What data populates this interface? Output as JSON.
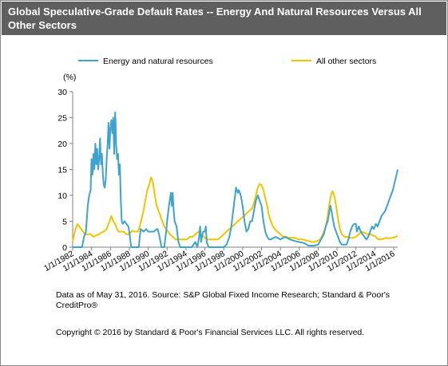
{
  "header": {
    "title": "Global Speculative-Grade Default Rates -- Energy And Natural Resources Versus All Other Sectors"
  },
  "footer": {
    "source": "Data as of May 31, 2016. Source: S&P Global Fixed Income Research; Standard &  Poor's CreditPro®",
    "copyright": "Copyright © 2016 by Standard & Poor's Financial Services LLC. All rights reserved."
  },
  "colors": {
    "energy": "#3fa3cf",
    "other": "#f2c400",
    "axis": "#808080"
  },
  "chart_data": {
    "type": "line",
    "title": "",
    "ylabel": "(%)",
    "xlabel": "",
    "xlim": [
      1982.0,
      2016.42
    ],
    "ylim": [
      0,
      30
    ],
    "yticks": [
      0,
      5,
      10,
      15,
      20,
      25,
      30
    ],
    "xticks": [
      "1/1/1982",
      "1/1/1984",
      "1/1/1986",
      "1/1/1988",
      "1/1/1990",
      "1/1/1992",
      "1/1/1994",
      "1/1/1996",
      "1/1/1998",
      "1/1/2000",
      "1/1/2002",
      "1/1/2004",
      "1/1/2006",
      "1/1/2008",
      "1/1/2010",
      "1/1/2012",
      "1/1/2014",
      "1/1/2016"
    ],
    "grid": false,
    "legend": "top",
    "series": [
      {
        "name": "Energy and natural resources",
        "color": "#3fa3cf",
        "points": [
          [
            1982.0,
            0
          ],
          [
            1982.3,
            0
          ],
          [
            1982.7,
            0
          ],
          [
            1983.0,
            0
          ],
          [
            1983.2,
            2
          ],
          [
            1983.4,
            3
          ],
          [
            1983.6,
            8
          ],
          [
            1983.75,
            10
          ],
          [
            1983.9,
            11
          ],
          [
            1984.0,
            17
          ],
          [
            1984.1,
            14
          ],
          [
            1984.2,
            18
          ],
          [
            1984.3,
            15
          ],
          [
            1984.4,
            20
          ],
          [
            1984.5,
            16
          ],
          [
            1984.6,
            19
          ],
          [
            1984.7,
            15
          ],
          [
            1984.8,
            17
          ],
          [
            1984.9,
            21
          ],
          [
            1985.0,
            16
          ],
          [
            1985.1,
            18
          ],
          [
            1985.2,
            14
          ],
          [
            1985.3,
            12
          ],
          [
            1985.4,
            11.5
          ],
          [
            1985.5,
            13
          ],
          [
            1985.6,
            17
          ],
          [
            1985.7,
            20
          ],
          [
            1985.8,
            24
          ],
          [
            1985.9,
            19
          ],
          [
            1986.0,
            23
          ],
          [
            1986.1,
            24.5
          ],
          [
            1986.2,
            22
          ],
          [
            1986.3,
            25
          ],
          [
            1986.4,
            18
          ],
          [
            1986.5,
            26
          ],
          [
            1986.55,
            24
          ],
          [
            1986.6,
            20
          ],
          [
            1986.7,
            17
          ],
          [
            1986.8,
            18
          ],
          [
            1986.9,
            14
          ],
          [
            1987.0,
            16
          ],
          [
            1987.1,
            9
          ],
          [
            1987.2,
            5
          ],
          [
            1987.3,
            4.5
          ],
          [
            1987.5,
            5
          ],
          [
            1987.7,
            4.5
          ],
          [
            1987.9,
            4
          ],
          [
            1988.0,
            3
          ],
          [
            1988.2,
            0
          ],
          [
            1988.6,
            0
          ],
          [
            1989.0,
            0
          ],
          [
            1989.2,
            3.5
          ],
          [
            1989.5,
            3
          ],
          [
            1989.8,
            3.5
          ],
          [
            1990.0,
            3
          ],
          [
            1990.3,
            3
          ],
          [
            1990.6,
            3
          ],
          [
            1990.9,
            3.5
          ],
          [
            1991.0,
            3.5
          ],
          [
            1991.2,
            2
          ],
          [
            1991.4,
            0
          ],
          [
            1991.7,
            0
          ],
          [
            1991.9,
            3
          ],
          [
            1992.0,
            5
          ],
          [
            1992.2,
            8
          ],
          [
            1992.4,
            10.5
          ],
          [
            1992.5,
            8
          ],
          [
            1992.6,
            10.5
          ],
          [
            1992.7,
            7
          ],
          [
            1992.8,
            5
          ],
          [
            1993.0,
            4
          ],
          [
            1993.2,
            1
          ],
          [
            1993.4,
            0
          ],
          [
            1993.6,
            0
          ],
          [
            1994.0,
            0
          ],
          [
            1994.3,
            0
          ],
          [
            1994.6,
            0
          ],
          [
            1995.0,
            1
          ],
          [
            1995.2,
            0
          ],
          [
            1995.4,
            2
          ],
          [
            1995.5,
            4
          ],
          [
            1995.6,
            1
          ],
          [
            1995.7,
            2
          ],
          [
            1995.8,
            3
          ],
          [
            1996.0,
            3
          ],
          [
            1996.1,
            4
          ],
          [
            1996.2,
            1
          ],
          [
            1996.4,
            0
          ],
          [
            1996.7,
            0
          ],
          [
            1997.0,
            0
          ],
          [
            1997.3,
            0
          ],
          [
            1997.6,
            0
          ],
          [
            1998.0,
            0
          ],
          [
            1998.3,
            0.5
          ],
          [
            1998.6,
            2
          ],
          [
            1998.8,
            4
          ],
          [
            1999.0,
            7
          ],
          [
            1999.2,
            10
          ],
          [
            1999.3,
            11.5
          ],
          [
            1999.5,
            10.5
          ],
          [
            1999.6,
            11
          ],
          [
            1999.8,
            10
          ],
          [
            2000.0,
            8
          ],
          [
            2000.2,
            5
          ],
          [
            2000.4,
            3
          ],
          [
            2000.6,
            3.5
          ],
          [
            2000.8,
            5
          ],
          [
            2001.0,
            5
          ],
          [
            2001.2,
            7
          ],
          [
            2001.4,
            9
          ],
          [
            2001.6,
            10
          ],
          [
            2001.8,
            9
          ],
          [
            2002.0,
            8
          ],
          [
            2002.2,
            5
          ],
          [
            2002.4,
            3
          ],
          [
            2002.6,
            2
          ],
          [
            2002.8,
            1.5
          ],
          [
            2003.0,
            1.5
          ],
          [
            2003.5,
            2
          ],
          [
            2004.0,
            1.5
          ],
          [
            2004.5,
            2
          ],
          [
            2005.0,
            1.5
          ],
          [
            2005.5,
            1.2
          ],
          [
            2006.0,
            1
          ],
          [
            2006.5,
            0.8
          ],
          [
            2007.0,
            0.3
          ],
          [
            2007.5,
            0.3
          ],
          [
            2008.0,
            0.5
          ],
          [
            2008.3,
            1.5
          ],
          [
            2008.6,
            2.5
          ],
          [
            2008.8,
            4
          ],
          [
            2009.0,
            5
          ],
          [
            2009.2,
            7
          ],
          [
            2009.3,
            8
          ],
          [
            2009.5,
            6
          ],
          [
            2009.7,
            4
          ],
          [
            2009.9,
            3
          ],
          [
            2010.1,
            2
          ],
          [
            2010.3,
            1
          ],
          [
            2010.5,
            0.5
          ],
          [
            2010.8,
            0.5
          ],
          [
            2011.0,
            0.5
          ],
          [
            2011.2,
            1.5
          ],
          [
            2011.4,
            3
          ],
          [
            2011.6,
            4
          ],
          [
            2011.8,
            4.5
          ],
          [
            2012.0,
            4.5
          ],
          [
            2012.1,
            3
          ],
          [
            2012.3,
            4
          ],
          [
            2012.5,
            3
          ],
          [
            2012.7,
            2.5
          ],
          [
            2012.9,
            2
          ],
          [
            2013.1,
            1.5
          ],
          [
            2013.3,
            2
          ],
          [
            2013.5,
            3
          ],
          [
            2013.7,
            4
          ],
          [
            2013.9,
            3.5
          ],
          [
            2014.1,
            4.5
          ],
          [
            2014.3,
            4
          ],
          [
            2014.5,
            5
          ],
          [
            2014.7,
            6
          ],
          [
            2014.9,
            6.5
          ],
          [
            2015.1,
            7
          ],
          [
            2015.3,
            8
          ],
          [
            2015.5,
            9
          ],
          [
            2015.7,
            10
          ],
          [
            2015.9,
            11
          ],
          [
            2016.1,
            12.5
          ],
          [
            2016.3,
            14
          ],
          [
            2016.42,
            15
          ]
        ]
      },
      {
        "name": "All other sectors",
        "color": "#f2c400",
        "points": [
          [
            1982.0,
            1
          ],
          [
            1982.1,
            2
          ],
          [
            1982.3,
            3.5
          ],
          [
            1982.5,
            4.5
          ],
          [
            1982.7,
            4
          ],
          [
            1982.9,
            3.5
          ],
          [
            1983.1,
            3
          ],
          [
            1983.3,
            2.5
          ],
          [
            1983.6,
            2.5
          ],
          [
            1983.9,
            2.5
          ],
          [
            1984.2,
            2
          ],
          [
            1984.5,
            2.3
          ],
          [
            1984.8,
            2.5
          ],
          [
            1985.0,
            2.8
          ],
          [
            1985.3,
            3
          ],
          [
            1985.6,
            3.5
          ],
          [
            1985.8,
            4.5
          ],
          [
            1986.0,
            5.5
          ],
          [
            1986.1,
            6
          ],
          [
            1986.3,
            5
          ],
          [
            1986.5,
            4.5
          ],
          [
            1986.7,
            3.5
          ],
          [
            1986.9,
            3
          ],
          [
            1987.1,
            3
          ],
          [
            1987.4,
            3
          ],
          [
            1987.7,
            2.5
          ],
          [
            1988.0,
            2.5
          ],
          [
            1988.3,
            3.2
          ],
          [
            1988.6,
            3
          ],
          [
            1988.9,
            3
          ],
          [
            1989.1,
            4
          ],
          [
            1989.3,
            5.5
          ],
          [
            1989.5,
            7
          ],
          [
            1989.7,
            9
          ],
          [
            1989.9,
            11
          ],
          [
            1990.1,
            12
          ],
          [
            1990.3,
            13.5
          ],
          [
            1990.5,
            12.5
          ],
          [
            1990.7,
            10
          ],
          [
            1990.9,
            8
          ],
          [
            1991.1,
            7
          ],
          [
            1991.3,
            6
          ],
          [
            1991.5,
            5
          ],
          [
            1991.7,
            4
          ],
          [
            1991.9,
            3.5
          ],
          [
            1992.1,
            3
          ],
          [
            1992.3,
            2.5
          ],
          [
            1992.6,
            2
          ],
          [
            1992.9,
            1.5
          ],
          [
            1993.2,
            1.5
          ],
          [
            1993.5,
            1.5
          ],
          [
            1993.8,
            1.5
          ],
          [
            1994.1,
            1.5
          ],
          [
            1994.4,
            2
          ],
          [
            1994.7,
            2
          ],
          [
            1995.0,
            2.5
          ],
          [
            1995.3,
            3
          ],
          [
            1995.6,
            2.5
          ],
          [
            1995.9,
            2
          ],
          [
            1996.2,
            1.5
          ],
          [
            1996.5,
            1.5
          ],
          [
            1996.8,
            1.5
          ],
          [
            1997.1,
            1.5
          ],
          [
            1997.4,
            1.5
          ],
          [
            1997.7,
            2
          ],
          [
            1998.0,
            2.5
          ],
          [
            1998.3,
            3
          ],
          [
            1998.6,
            3.5
          ],
          [
            1998.9,
            4
          ],
          [
            1999.2,
            4.5
          ],
          [
            1999.5,
            5
          ],
          [
            1999.8,
            5.5
          ],
          [
            2000.1,
            6
          ],
          [
            2000.4,
            6.5
          ],
          [
            2000.7,
            7
          ],
          [
            2001.0,
            7.5
          ],
          [
            2001.2,
            8.5
          ],
          [
            2001.4,
            10
          ],
          [
            2001.6,
            11.5
          ],
          [
            2001.8,
            12.2
          ],
          [
            2002.0,
            12
          ],
          [
            2002.2,
            11
          ],
          [
            2002.4,
            9.5
          ],
          [
            2002.6,
            8
          ],
          [
            2002.8,
            6
          ],
          [
            2003.0,
            5
          ],
          [
            2003.2,
            4
          ],
          [
            2003.4,
            3.5
          ],
          [
            2003.7,
            3
          ],
          [
            2004.0,
            2.5
          ],
          [
            2004.3,
            2
          ],
          [
            2004.6,
            2
          ],
          [
            2004.9,
            1.8
          ],
          [
            2005.2,
            1.8
          ],
          [
            2005.5,
            1.8
          ],
          [
            2005.8,
            1.6
          ],
          [
            2006.1,
            1.5
          ],
          [
            2006.4,
            1.5
          ],
          [
            2006.7,
            1.3
          ],
          [
            2007.0,
            1.2
          ],
          [
            2007.3,
            1
          ],
          [
            2007.6,
            1
          ],
          [
            2007.9,
            1.2
          ],
          [
            2008.2,
            1.5
          ],
          [
            2008.5,
            2.5
          ],
          [
            2008.8,
            4
          ],
          [
            2009.0,
            6
          ],
          [
            2009.2,
            8.5
          ],
          [
            2009.35,
            10
          ],
          [
            2009.5,
            10.8
          ],
          [
            2009.7,
            10
          ],
          [
            2009.9,
            8
          ],
          [
            2010.1,
            5.5
          ],
          [
            2010.3,
            3.5
          ],
          [
            2010.5,
            2.5
          ],
          [
            2010.8,
            2
          ],
          [
            2011.1,
            2
          ],
          [
            2011.4,
            1.8
          ],
          [
            2011.7,
            1.8
          ],
          [
            2012.0,
            2
          ],
          [
            2012.3,
            2.5
          ],
          [
            2012.6,
            3
          ],
          [
            2012.9,
            2.8
          ],
          [
            2013.2,
            2.5
          ],
          [
            2013.5,
            2.5
          ],
          [
            2013.8,
            2.3
          ],
          [
            2014.1,
            2
          ],
          [
            2014.3,
            1.6
          ],
          [
            2014.6,
            1.5
          ],
          [
            2014.9,
            1.6
          ],
          [
            2015.2,
            1.8
          ],
          [
            2015.5,
            1.7
          ],
          [
            2015.8,
            1.8
          ],
          [
            2016.1,
            1.9
          ],
          [
            2016.42,
            2.2
          ]
        ]
      }
    ]
  }
}
